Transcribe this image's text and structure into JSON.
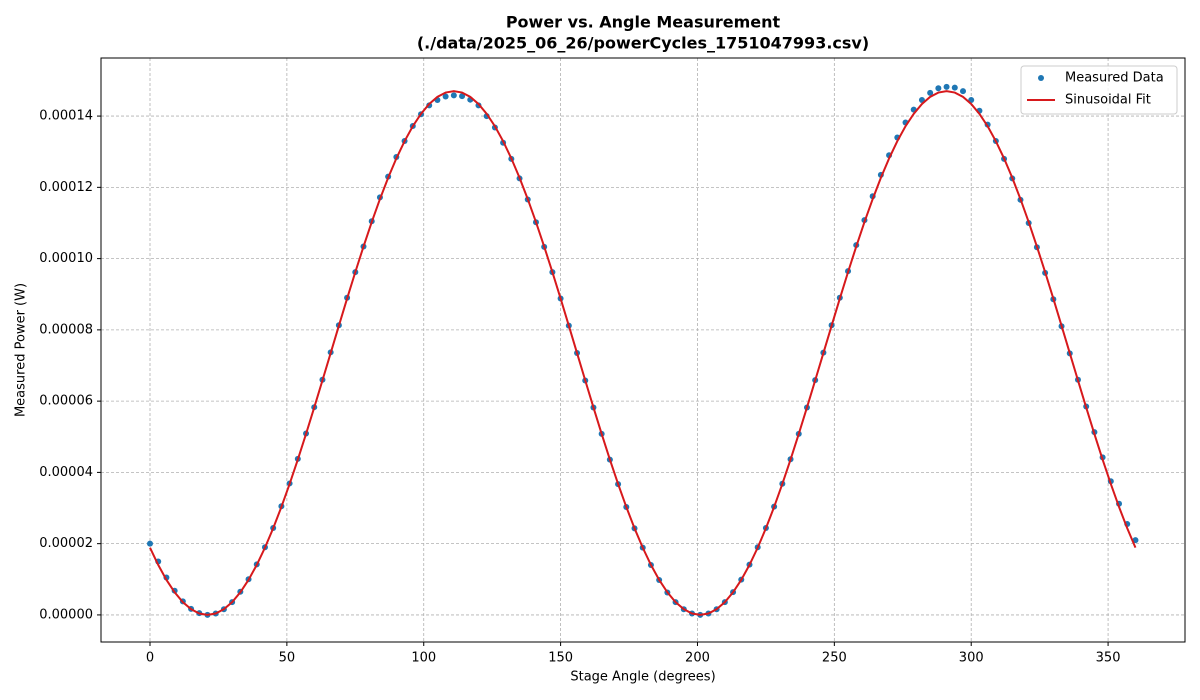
{
  "chart_data": {
    "type": "line",
    "title": "Power vs. Angle Measurement",
    "subtitle": "(./data/2025_06_26/powerCycles_1751047993.csv)",
    "x_label": "Stage Angle (degrees)",
    "y_label": "Measured Power (W)",
    "xlim": [
      -17.9,
      378.1
    ],
    "ylim": [
      -7.6e-06,
      0.0001563
    ],
    "xticks": [
      0,
      50,
      100,
      150,
      200,
      250,
      300,
      350
    ],
    "yticks": [
      {
        "value": 0,
        "label": "0.00000"
      },
      {
        "value": 2e-05,
        "label": "0.00002"
      },
      {
        "value": 4e-05,
        "label": "0.00004"
      },
      {
        "value": 6e-05,
        "label": "0.00006"
      },
      {
        "value": 8e-05,
        "label": "0.00008"
      },
      {
        "value": 0.0001,
        "label": "0.00010"
      },
      {
        "value": 0.00012,
        "label": "0.00012"
      },
      {
        "value": 0.00014,
        "label": "0.00014"
      }
    ],
    "grid": true,
    "legend": "upper right",
    "x": [
      0,
      3,
      6,
      9,
      12,
      15,
      18,
      21,
      24,
      27,
      30,
      33,
      36,
      39,
      42,
      45,
      48,
      51,
      54,
      57,
      60,
      63,
      66,
      69,
      72,
      75,
      78,
      81,
      84,
      87,
      90,
      93,
      96,
      99,
      102,
      105,
      108,
      111,
      114,
      117,
      120,
      123,
      126,
      129,
      132,
      135,
      138,
      141,
      144,
      147,
      150,
      153,
      156,
      159,
      162,
      165,
      168,
      171,
      174,
      177,
      180,
      183,
      186,
      189,
      192,
      195,
      198,
      201,
      204,
      207,
      210,
      213,
      216,
      219,
      222,
      225,
      228,
      231,
      234,
      237,
      240,
      243,
      246,
      249,
      252,
      255,
      258,
      261,
      264,
      267,
      270,
      273,
      276,
      279,
      282,
      285,
      288,
      291,
      294,
      297,
      300,
      303,
      306,
      309,
      312,
      315,
      318,
      321,
      324,
      327,
      330,
      333,
      336,
      339,
      342,
      345,
      348,
      351,
      354,
      357,
      360
    ],
    "series": [
      {
        "name": "Measured Data",
        "color": "#1f77b4",
        "style": "marker",
        "values": [
          2e-05,
          1.5e-05,
          1.05e-05,
          6.8e-06,
          3.8e-06,
          1.7e-06,
          5e-07,
          0,
          4e-07,
          1.6e-06,
          3.6e-06,
          6.5e-06,
          1e-05,
          1.42e-05,
          1.9e-05,
          2.44e-05,
          3.05e-05,
          3.69e-05,
          4.38e-05,
          5.09e-05,
          5.83e-05,
          6.6e-05,
          7.37e-05,
          8.13e-05,
          8.9e-05,
          9.62e-05,
          0.0001034,
          0.0001105,
          0.0001172,
          0.000123,
          0.0001285,
          0.000133,
          0.0001372,
          0.0001405,
          0.000143,
          0.0001445,
          0.0001455,
          0.0001458,
          0.0001456,
          0.0001446,
          0.000143,
          0.00014,
          0.0001368,
          0.0001325,
          0.000128,
          0.0001225,
          0.0001166,
          0.0001102,
          0.0001033,
          9.62e-05,
          8.88e-05,
          8.12e-05,
          7.35e-05,
          6.58e-05,
          5.82e-05,
          5.08e-05,
          4.36e-05,
          3.67e-05,
          3.03e-05,
          2.43e-05,
          1.89e-05,
          1.4e-05,
          9.8e-06,
          6.3e-06,
          3.6e-06,
          1.6e-06,
          4e-07,
          0,
          4e-07,
          1.6e-06,
          3.6e-06,
          6.4e-06,
          9.9e-06,
          1.41e-05,
          1.9e-05,
          2.44e-05,
          3.04e-05,
          3.68e-05,
          4.37e-05,
          5.08e-05,
          5.82e-05,
          6.59e-05,
          7.36e-05,
          8.13e-05,
          8.9e-05,
          9.65e-05,
          0.0001038,
          0.0001108,
          0.0001175,
          0.0001235,
          0.000129,
          0.000134,
          0.0001382,
          0.0001418,
          0.0001445,
          0.0001465,
          0.0001478,
          0.0001482,
          0.000148,
          0.000147,
          0.0001445,
          0.0001415,
          0.0001376,
          0.000133,
          0.000128,
          0.0001225,
          0.0001165,
          0.00011,
          0.0001032,
          9.6e-05,
          8.86e-05,
          8.1e-05,
          7.34e-05,
          6.6e-05,
          5.85e-05,
          5.13e-05,
          4.42e-05,
          3.75e-05,
          3.12e-05,
          2.55e-05,
          2.1e-05
        ]
      },
      {
        "name": "Sinusoidal Fit",
        "color": "#d7191c",
        "style": "line",
        "values": [
          1.888e-05,
          1.404e-05,
          9.85e-06,
          6.36e-06,
          3.59e-06,
          1.61e-06,
          4e-07,
          0,
          4e-07,
          1.61e-06,
          3.59e-06,
          6.36e-06,
          9.85e-06,
          1.404e-05,
          1.888e-05,
          2.432e-05,
          3.03e-05,
          3.675e-05,
          4.361e-05,
          5.079e-05,
          5.822e-05,
          6.582e-05,
          7.35e-05,
          8.118e-05,
          8.878e-05,
          9.621e-05,
          0.00010339,
          0.00011025,
          0.0001167,
          0.00012268,
          0.00012812,
          0.00013296,
          0.00013715,
          0.00014064,
          0.00014341,
          0.00014539,
          0.0001466,
          0.000147,
          0.0001466,
          0.00014539,
          0.00014341,
          0.00014064,
          0.00013715,
          0.00013296,
          0.00012812,
          0.00012268,
          0.0001167,
          0.00011025,
          0.00010339,
          9.621e-05,
          8.878e-05,
          8.118e-05,
          7.35e-05,
          6.582e-05,
          5.822e-05,
          5.079e-05,
          4.361e-05,
          3.675e-05,
          3.03e-05,
          2.432e-05,
          1.888e-05,
          1.404e-05,
          9.85e-06,
          6.36e-06,
          3.59e-06,
          1.61e-06,
          4e-07,
          0,
          4e-07,
          1.61e-06,
          3.59e-06,
          6.36e-06,
          9.85e-06,
          1.404e-05,
          1.888e-05,
          2.432e-05,
          3.03e-05,
          3.675e-05,
          4.361e-05,
          5.079e-05,
          5.822e-05,
          6.582e-05,
          7.35e-05,
          8.118e-05,
          8.878e-05,
          9.621e-05,
          0.00010339,
          0.00011025,
          0.0001167,
          0.00012268,
          0.00012812,
          0.00013296,
          0.00013715,
          0.00014064,
          0.00014341,
          0.00014539,
          0.0001466,
          0.000147,
          0.0001466,
          0.00014539,
          0.00014341,
          0.00014064,
          0.00013715,
          0.00013296,
          0.00012812,
          0.00012268,
          0.0001167,
          0.00011025,
          0.00010339,
          9.621e-05,
          8.878e-05,
          8.118e-05,
          7.35e-05,
          6.582e-05,
          5.822e-05,
          5.079e-05,
          4.361e-05,
          3.675e-05,
          3.03e-05,
          2.432e-05,
          1.888e-05
        ]
      }
    ]
  }
}
